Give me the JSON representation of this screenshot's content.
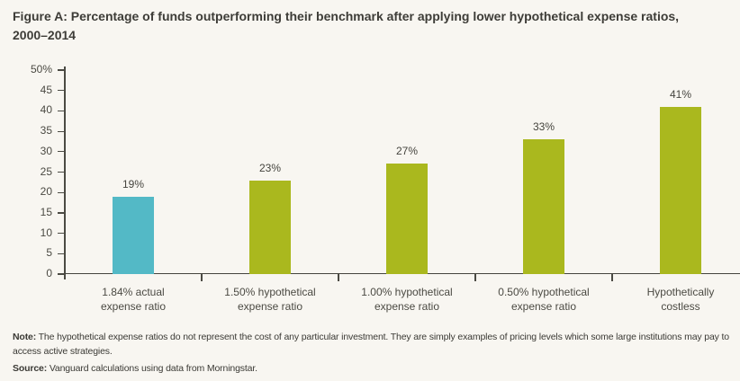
{
  "chart_data": {
    "type": "bar",
    "title": "Figure A: Percentage of funds outperforming their benchmark after applying lower hypothetical expense ratios, 2000–2014",
    "categories": [
      [
        "1.84% actual",
        "expense ratio"
      ],
      [
        "1.50% hypothetical",
        "expense ratio"
      ],
      [
        "1.00% hypothetical",
        "expense ratio"
      ],
      [
        "0.50% hypothetical",
        "expense ratio"
      ],
      [
        "Hypothetically",
        "costless"
      ]
    ],
    "values": [
      19,
      23,
      27,
      33,
      41
    ],
    "value_labels": [
      "19%",
      "23%",
      "27%",
      "33%",
      "41%"
    ],
    "bar_colors": [
      "#53b9c6",
      "#aab81e",
      "#aab81e",
      "#aab81e",
      "#aab81e"
    ],
    "xlabel": "",
    "ylabel": "",
    "ylim": [
      0,
      50
    ],
    "ytick_step": 5,
    "ytick_labels": [
      "50%",
      "45",
      "40",
      "35",
      "30",
      "25",
      "20",
      "15",
      "10",
      "5",
      "0"
    ],
    "grid": false,
    "legend": false
  },
  "colors": {
    "background": "#f8f6f1",
    "teal_bar": "#53b9c6",
    "olive_bar": "#aab81e",
    "axis": "#4b4a43",
    "title_text": "#3d3c37"
  },
  "notes": {
    "note_label": "Note:",
    "note_text": "The hypothetical expense ratios do not represent the cost of any particular investment. They are simply examples of pricing levels which some large institutions may pay to access active strategies.",
    "source_label": "Source:",
    "source_text": "Vanguard calculations using data from Morningstar."
  }
}
